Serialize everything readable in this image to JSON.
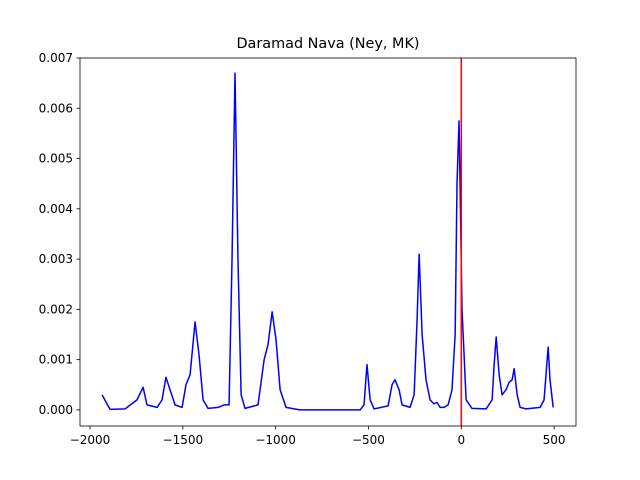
{
  "chart_data": {
    "type": "line",
    "title": "Daramad Nava (Ney, MK)",
    "color": "#0000ff",
    "x": [
      -1935,
      -1892,
      -1811,
      -1747,
      -1714,
      -1693,
      -1639,
      -1612,
      -1591,
      -1569,
      -1542,
      -1504,
      -1483,
      -1461,
      -1434,
      -1413,
      -1391,
      -1364,
      -1310,
      -1278,
      -1251,
      -1235,
      -1219,
      -1203,
      -1186,
      -1165,
      -1095,
      -1062,
      -1041,
      -1019,
      -998,
      -976,
      -944,
      -869,
      -545,
      -524,
      -508,
      -491,
      -470,
      -394,
      -373,
      -357,
      -335,
      -319,
      -276,
      -254,
      -238,
      -227,
      -211,
      -190,
      -168,
      -147,
      -131,
      -114,
      -93,
      -71,
      -50,
      -33,
      -23,
      -12,
      4,
      26,
      58,
      134,
      166,
      177,
      188,
      204,
      220,
      241,
      258,
      274,
      285,
      301,
      317,
      349,
      425,
      446,
      468,
      478,
      495
    ],
    "values": [
      0.0003,
      1e-05,
      2e-05,
      0.0002,
      0.00045,
      0.0001,
      5e-05,
      0.0002,
      0.00065,
      0.0004,
      0.0001,
      5e-05,
      0.0005,
      0.0007,
      0.00175,
      0.0011,
      0.0002,
      3e-05,
      5e-05,
      0.0001,
      0.0001,
      0.003,
      0.0067,
      0.003,
      0.0003,
      3e-05,
      0.0001,
      0.001,
      0.0013,
      0.00195,
      0.0014,
      0.0004,
      5e-05,
      0,
      0,
      0.0001,
      0.0009,
      0.0002,
      2e-05,
      8e-05,
      0.0005,
      0.0006,
      0.0004,
      0.0001,
      5e-05,
      0.0003,
      0.0018,
      0.0031,
      0.0015,
      0.0006,
      0.0002,
      0.00012,
      0.00015,
      5e-05,
      5e-05,
      0.0001,
      0.0004,
      0.0015,
      0.0045,
      0.00575,
      0.002,
      0.0002,
      3e-05,
      2e-05,
      0.0002,
      0.0009,
      0.00145,
      0.0007,
      0.0003,
      0.0004,
      0.00055,
      0.0006,
      0.00082,
      0.0003,
      5e-05,
      2e-05,
      5e-05,
      0.0002,
      0.00125,
      0.0006,
      5e-05
    ],
    "xlim": [
      -2054,
      618
    ],
    "ylim": [
      -0.00032,
      0.007
    ],
    "xticks": [
      {
        "value": -2000,
        "label": "−2000"
      },
      {
        "value": -1500,
        "label": "−1500"
      },
      {
        "value": -1000,
        "label": "−1000"
      },
      {
        "value": -500,
        "label": "−500"
      },
      0,
      500
    ],
    "yticks": [
      {
        "value": 0,
        "label": "0.000"
      },
      {
        "value": 0.001,
        "label": "0.001"
      },
      {
        "value": 0.002,
        "label": "0.002"
      },
      {
        "value": 0.003,
        "label": "0.003"
      },
      {
        "value": 0.004,
        "label": "0.004"
      },
      {
        "value": 0.005,
        "label": "0.005"
      },
      {
        "value": 0.006,
        "label": "0.006"
      },
      {
        "value": 0.007,
        "label": "0.007"
      }
    ],
    "vline": {
      "x": 0,
      "color": "#ff0000"
    }
  }
}
